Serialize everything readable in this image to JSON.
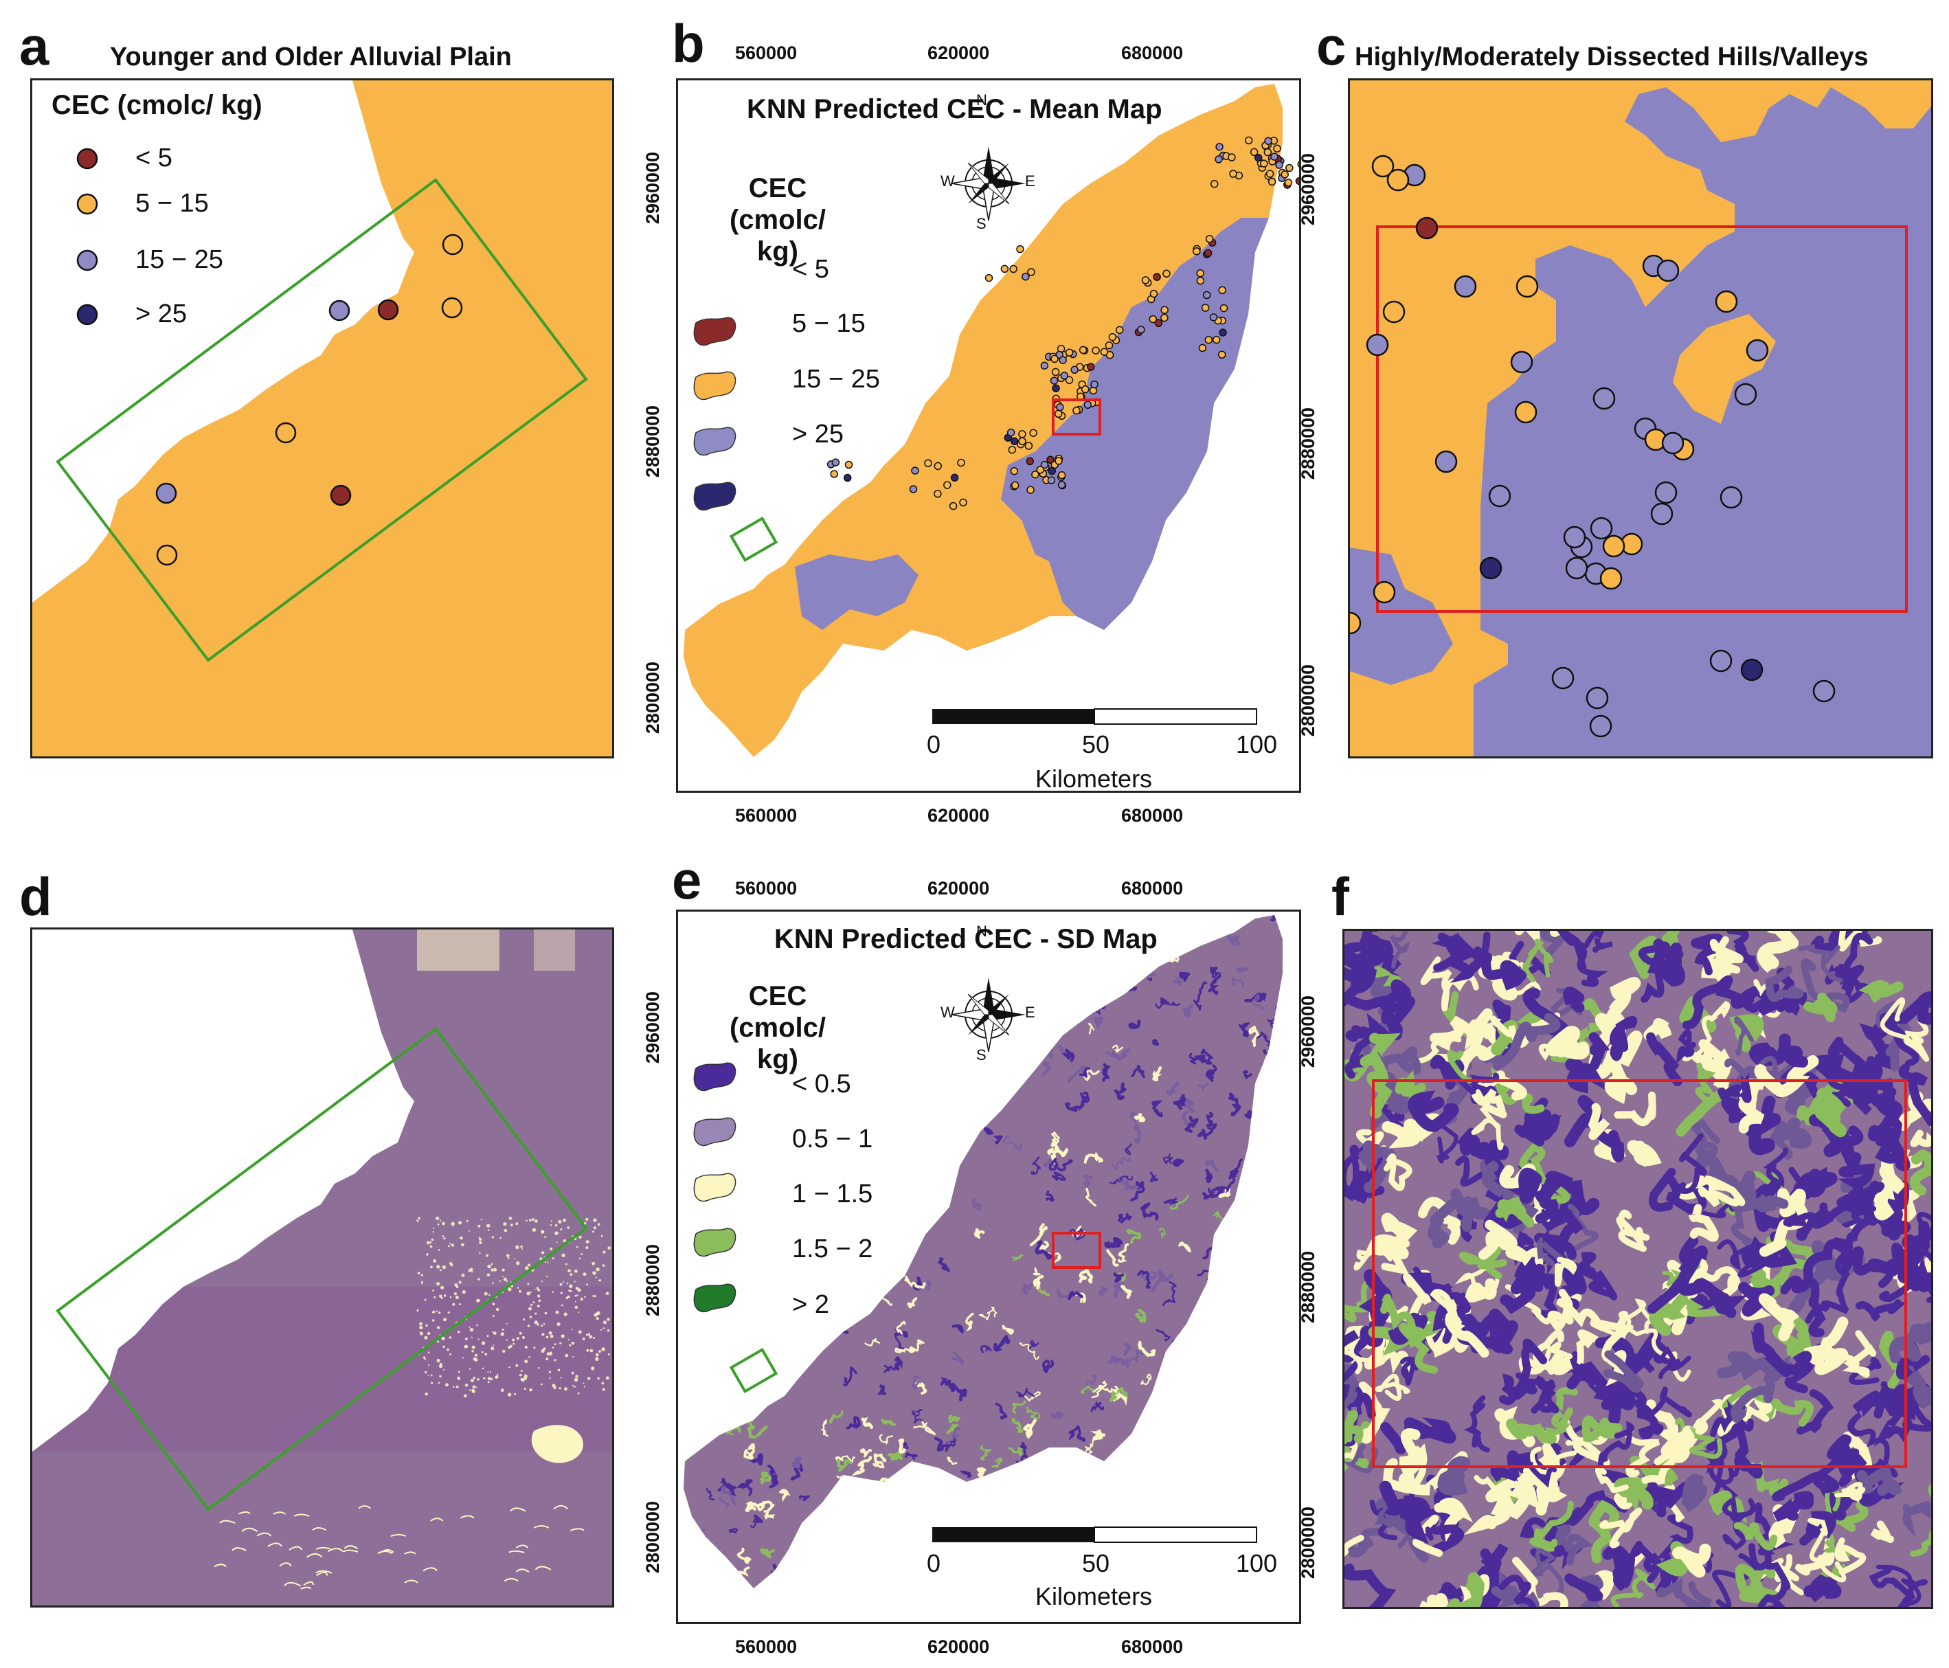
{
  "panels": {
    "a": {
      "label": "a",
      "title": "Younger and Older Alluvial Plain"
    },
    "b": {
      "label": "b",
      "title": "KNN Predicted CEC - Mean Map"
    },
    "c": {
      "label": "c",
      "title": "Highly/Moderately Dissected Hills/Valleys"
    },
    "d": {
      "label": "d"
    },
    "e": {
      "label": "e",
      "title": "KNN Predicted CEC - SD Map"
    },
    "f": {
      "label": "f"
    }
  },
  "mean_legend": {
    "title_line": "CEC  (cmolc/ kg)",
    "title_l1": "CEC",
    "title_l2": "(cmolc/ kg)",
    "classes": [
      {
        "label": "< 5",
        "color": "#8b2a2a"
      },
      {
        "label": "5 − 15",
        "color": "#f7b54a"
      },
      {
        "label": "15 − 25",
        "color": "#8f8bc4"
      },
      {
        "label": "> 25",
        "color": "#2b2870"
      }
    ]
  },
  "sd_legend": {
    "title_l1": "CEC",
    "title_l2": "(cmolc/ kg)",
    "classes": [
      {
        "label": "< 0.5",
        "color": "#4b2a9a"
      },
      {
        "label": "0.5 − 1",
        "color": "#9a86b4"
      },
      {
        "label": "1 − 1.5",
        "color": "#fbf6c2"
      },
      {
        "label": "1.5 − 2",
        "color": "#8bbd5c"
      },
      {
        "label": "> 2",
        "color": "#1f7a2a"
      }
    ]
  },
  "axes": {
    "x_ticks": [
      "560000",
      "620000",
      "680000"
    ],
    "y_ticks": [
      "2960000",
      "2880000",
      "2800000"
    ]
  },
  "scalebar": {
    "ticks": [
      "0",
      "50",
      "100"
    ],
    "unit": "Kilometers"
  },
  "compass": {
    "n": "N",
    "s": "S",
    "e": "E",
    "w": "W"
  },
  "colors": {
    "orange": "#f7b54a",
    "lavender": "#8a84c2",
    "sd_purple": "#8d6f98",
    "sd_dark": "#4b2a9a",
    "sd_yellow": "#fbf6c2",
    "sd_green": "#8bbd5c",
    "inset_green": "#3aa02a",
    "inset_red": "#e02020"
  }
}
